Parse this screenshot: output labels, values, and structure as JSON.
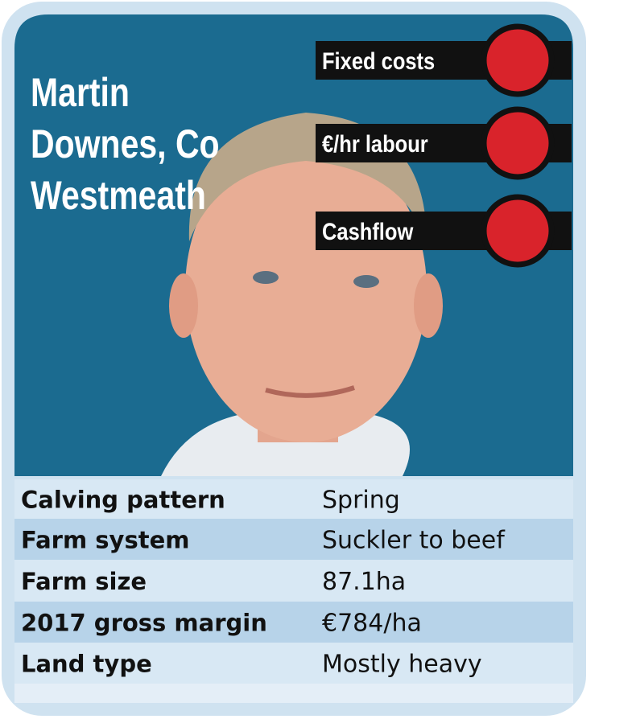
{
  "profile": {
    "name_lines": [
      "Martin",
      "Downes, Co",
      "Westmeath"
    ],
    "indicators": [
      {
        "label": "Fixed costs",
        "color": "#d9232b"
      },
      {
        "label": "€/hr labour",
        "color": "#d9232b"
      },
      {
        "label": "Cashflow",
        "color": "#d9232b"
      }
    ],
    "table": {
      "rows": [
        [
          "Calving pattern",
          "Spring"
        ],
        [
          "Farm system",
          "Suckler to beef"
        ],
        [
          "Farm size",
          "87.1ha"
        ],
        [
          "2017 gross margin",
          "€784/ha"
        ],
        [
          "Land type",
          "Mostly heavy"
        ]
      ]
    }
  }
}
